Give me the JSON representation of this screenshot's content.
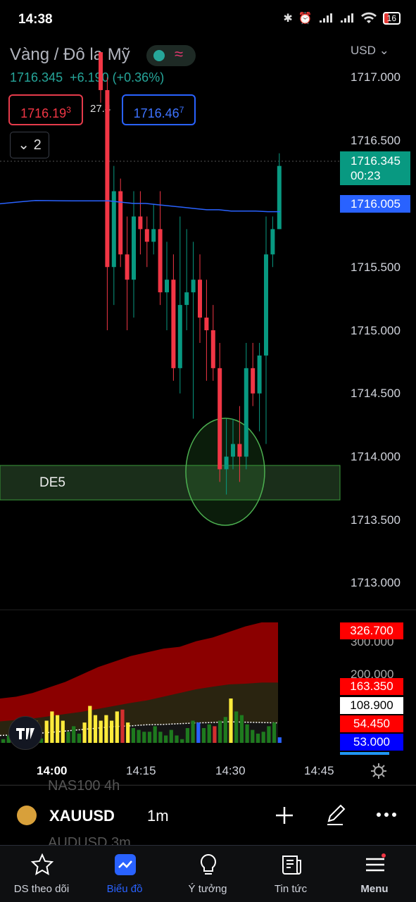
{
  "status_bar": {
    "time": "14:38",
    "battery": "16"
  },
  "header": {
    "symbol_name": "Vàng / Đô la Mỹ",
    "last_price": "1716.345",
    "change": "+6.190 (+0.36%)",
    "sell_price": "1716.19",
    "sell_price_sup": "3",
    "spread": "27.4",
    "buy_price": "1716.46",
    "buy_price_sup": "7",
    "indicator_toggle": "2",
    "currency": "USD"
  },
  "price_axis": {
    "labels": [
      "1717.000",
      "1716.500",
      "1715.500",
      "1715.000",
      "1714.500",
      "1714.000",
      "1713.500",
      "1713.000"
    ],
    "last_price_tag": "1716.345",
    "countdown": "00:23",
    "ma_tag": "1716.005"
  },
  "drawing": {
    "zone_label": "DE5"
  },
  "volume_pane": {
    "axis_labels": [
      "300.000",
      "200.000"
    ],
    "tags": [
      {
        "value": "326.700",
        "bg": "#ff0000",
        "fg": "#ffffff"
      },
      {
        "value": "163.350",
        "bg": "#ff0000",
        "fg": "#ffffff"
      },
      {
        "value": "108.900",
        "bg": "#ffffff",
        "fg": "#000000"
      },
      {
        "value": "54.450",
        "bg": "#ff0000",
        "fg": "#ffffff"
      },
      {
        "value": "53.000",
        "bg": "#0000ff",
        "fg": "#ffffff"
      }
    ]
  },
  "time_axis": {
    "labels": [
      "14:00",
      "14:15",
      "14:30",
      "14:45"
    ]
  },
  "symbol_bar": {
    "ticker": "XAUUSD",
    "interval": "1m",
    "ghost_prev": "NAS100   4h",
    "ghost_next": "AUDUSD   3m"
  },
  "nav": [
    {
      "label": "DS theo dõi",
      "icon": "star-icon",
      "active": false
    },
    {
      "label": "Biểu đồ",
      "icon": "chart-icon",
      "active": true
    },
    {
      "label": "Ý tưởng",
      "icon": "lightbulb-icon",
      "active": false
    },
    {
      "label": "Tin tức",
      "icon": "news-icon",
      "active": false
    },
    {
      "label": "Menu",
      "icon": "menu-icon",
      "active": false
    }
  ],
  "colors": {
    "up": "#089981",
    "down": "#f23645",
    "ma": "#2962ff",
    "accent": "#2962ff"
  },
  "chart_data": {
    "type": "candlestick",
    "title": "",
    "ylim": [
      1712.9,
      1717.3
    ],
    "x": [
      "14:00",
      "14:15",
      "14:30",
      "14:45"
    ],
    "candles": [
      [
        1717.2,
        1717.2,
        1716.8,
        1716.9
      ],
      [
        1716.9,
        1717.0,
        1715.0,
        1715.5
      ],
      [
        1715.5,
        1716.3,
        1715.2,
        1716.1
      ],
      [
        1716.1,
        1716.2,
        1715.5,
        1715.6
      ],
      [
        1715.6,
        1715.9,
        1715.0,
        1715.4
      ],
      [
        1715.4,
        1716.1,
        1715.1,
        1715.9
      ],
      [
        1715.9,
        1716.1,
        1715.6,
        1715.8
      ],
      [
        1715.8,
        1715.9,
        1715.5,
        1715.7
      ],
      [
        1715.7,
        1716.0,
        1715.6,
        1715.8
      ],
      [
        1715.8,
        1716.1,
        1715.2,
        1715.3
      ],
      [
        1715.3,
        1715.7,
        1715.0,
        1715.4
      ],
      [
        1715.4,
        1715.6,
        1714.6,
        1714.7
      ],
      [
        1714.7,
        1715.9,
        1714.5,
        1715.2
      ],
      [
        1715.2,
        1715.8,
        1715.0,
        1715.3
      ],
      [
        1715.3,
        1715.7,
        1714.3,
        1715.4
      ],
      [
        1715.4,
        1715.6,
        1714.9,
        1715.1
      ],
      [
        1715.1,
        1715.4,
        1714.6,
        1715.0
      ],
      [
        1715.0,
        1715.2,
        1714.6,
        1714.7
      ],
      [
        1714.7,
        1714.9,
        1713.8,
        1713.9
      ],
      [
        1713.9,
        1714.3,
        1713.7,
        1714.0
      ],
      [
        1714.0,
        1714.3,
        1713.9,
        1714.1
      ],
      [
        1714.1,
        1714.4,
        1713.8,
        1714.0
      ],
      [
        1714.0,
        1714.9,
        1713.9,
        1714.7
      ],
      [
        1714.7,
        1714.9,
        1714.4,
        1714.5
      ],
      [
        1714.5,
        1714.9,
        1714.2,
        1714.8
      ],
      [
        1714.8,
        1715.9,
        1714.1,
        1715.6
      ],
      [
        1715.6,
        1715.9,
        1715.5,
        1715.8
      ],
      [
        1715.8,
        1716.4,
        1715.8,
        1716.3
      ]
    ],
    "ma": [
      1716.0,
      1716.02,
      1716.04,
      1716.06,
      1716.07,
      1716.08,
      1716.09,
      1716.09,
      1716.09,
      1716.09,
      1716.08,
      1716.07,
      1716.07,
      1716.06,
      1716.05,
      1716.04,
      1716.03,
      1716.02,
      1716.02,
      1716.01,
      1716.01,
      1716.01,
      1716.005,
      1716.005
    ],
    "zone": {
      "label": "DE5",
      "from": 1713.55,
      "to": 1713.82
    },
    "volume": {
      "ylim": [
        0,
        360
      ],
      "bars": [
        10,
        20,
        55,
        45,
        8,
        40,
        60,
        12,
        60,
        85,
        75,
        60,
        30,
        45,
        25,
        55,
        100,
        75,
        60,
        75,
        60,
        85,
        90,
        55,
        40,
        35,
        30,
        30,
        45,
        30,
        20,
        35,
        20,
        10,
        40,
        60,
        55,
        40,
        50,
        45,
        60,
        70,
        120,
        85,
        75,
        50,
        35,
        25,
        30,
        45,
        55,
        15
      ],
      "upper_band": [
        120,
        125,
        135,
        150,
        165,
        185,
        205,
        220,
        235,
        245,
        255,
        260,
        275,
        285,
        300,
        315,
        326,
        326
      ],
      "mid_band": [
        58,
        62,
        66,
        72,
        78,
        84,
        92,
        100,
        108,
        115,
        125,
        135,
        145,
        152,
        158,
        160,
        163,
        163
      ],
      "lower_band": [
        20,
        22,
        25,
        28,
        32,
        36,
        40,
        44,
        46,
        49,
        50,
        52,
        54,
        55,
        57,
        56,
        55,
        54
      ]
    }
  }
}
